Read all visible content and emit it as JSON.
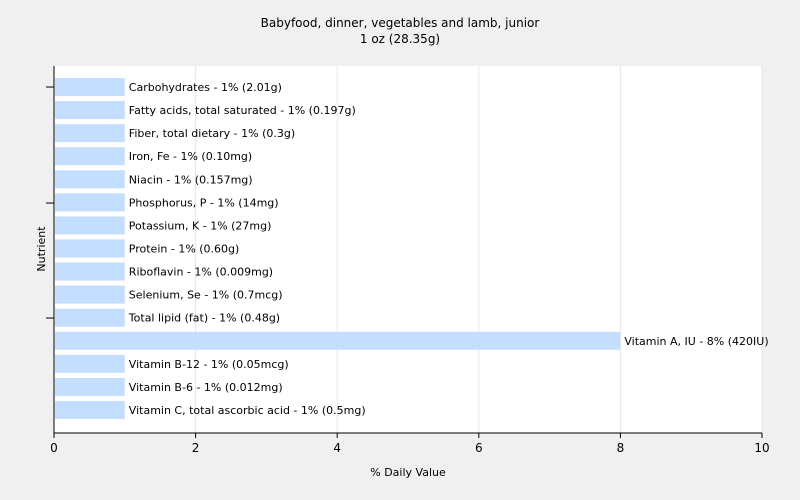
{
  "chart_data": {
    "type": "bar",
    "orientation": "horizontal",
    "title": "Babyfood, dinner, vegetables and lamb, junior",
    "subtitle": "1 oz (28.35g)",
    "xlabel": "% Daily Value",
    "ylabel": "Nutrient",
    "xlim": [
      0,
      10
    ],
    "xticks": [
      "0",
      "2",
      "4",
      "6",
      "8",
      "10"
    ],
    "grid": true,
    "bar_color": "#c4deff",
    "categories": [
      "Carbohydrates",
      "Fatty acids, total saturated",
      "Fiber, total dietary",
      "Iron, Fe",
      "Niacin",
      "Phosphorus, P",
      "Potassium, K",
      "Protein",
      "Riboflavin",
      "Selenium, Se",
      "Total lipid (fat)",
      "Vitamin A, IU",
      "Vitamin B-12",
      "Vitamin B-6",
      "Vitamin C, total ascorbic acid"
    ],
    "values": [
      1,
      1,
      1,
      1,
      1,
      1,
      1,
      1,
      1,
      1,
      1,
      8,
      1,
      1,
      1
    ],
    "labels": [
      "Carbohydrates - 1% (2.01g)",
      "Fatty acids, total saturated - 1% (0.197g)",
      "Fiber, total dietary - 1% (0.3g)",
      "Iron, Fe - 1% (0.10mg)",
      "Niacin - 1% (0.157mg)",
      "Phosphorus, P - 1% (14mg)",
      "Potassium, K - 1% (27mg)",
      "Protein - 1% (0.60g)",
      "Riboflavin - 1% (0.009mg)",
      "Selenium, Se - 1% (0.7mcg)",
      "Total lipid (fat) - 1% (0.48g)",
      "Vitamin A, IU - 8% (420IU)",
      "Vitamin B-12 - 1% (0.05mcg)",
      "Vitamin B-6 - 1% (0.012mg)",
      "Vitamin C, total ascorbic acid - 1% (0.5mg)"
    ]
  }
}
